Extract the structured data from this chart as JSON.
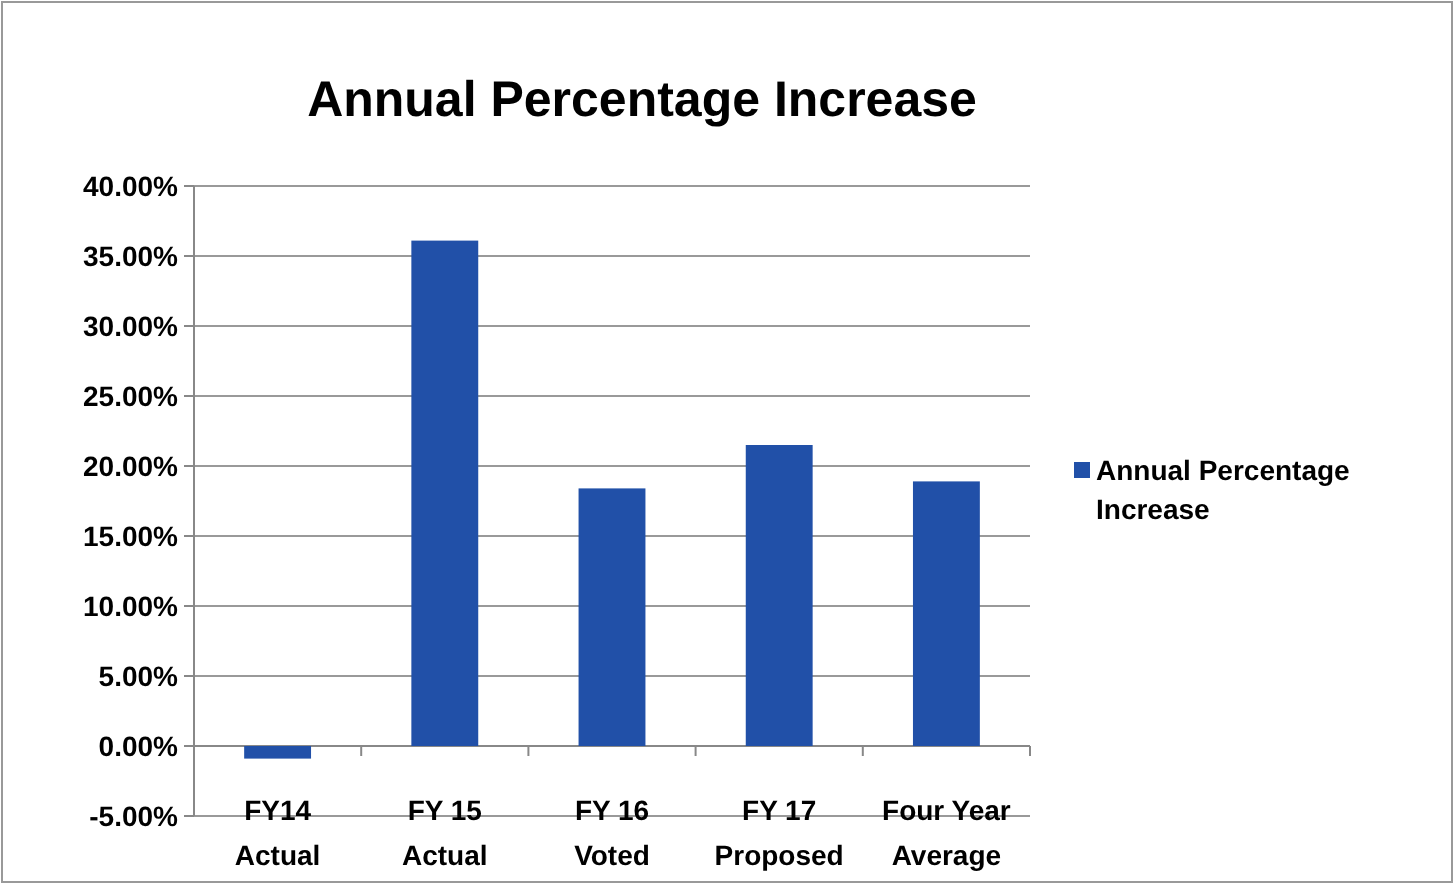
{
  "chart_data": {
    "type": "bar",
    "title": "Annual Percentage Increase",
    "categories": [
      "FY14\nActual",
      "FY 15\nActual",
      "FY 16\nVoted",
      "FY 17\nProposed",
      "Four Year\nAverage"
    ],
    "series": [
      {
        "name": "Annual Percentage Increase",
        "color": "#2150a8",
        "values": [
          -0.9,
          36.1,
          18.4,
          21.5,
          18.9
        ]
      }
    ],
    "ylim": [
      -5,
      40
    ],
    "yticks": [
      {
        "value": -5,
        "label": "-5.00%"
      },
      {
        "value": 0,
        "label": "0.00%"
      },
      {
        "value": 5,
        "label": "5.00%"
      },
      {
        "value": 10,
        "label": "10.00%"
      },
      {
        "value": 15,
        "label": "15.00%"
      },
      {
        "value": 20,
        "label": "20.00%"
      },
      {
        "value": 25,
        "label": "25.00%"
      },
      {
        "value": 30,
        "label": "30.00%"
      },
      {
        "value": 35,
        "label": "35.00%"
      },
      {
        "value": 40,
        "label": "40.00%"
      }
    ],
    "grid": "y",
    "legend": "right"
  }
}
